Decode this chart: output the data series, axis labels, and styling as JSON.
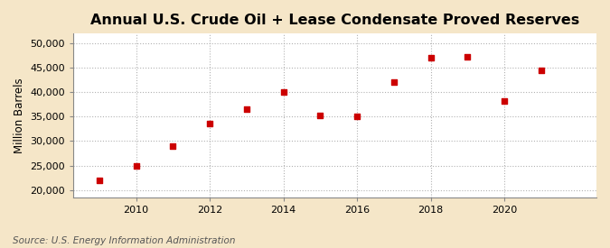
{
  "title": "Annual U.S. Crude Oil + Lease Condensate Proved Reserves",
  "ylabel": "Million Barrels",
  "source": "Source: U.S. Energy Information Administration",
  "background_color": "#f5e6c8",
  "plot_bg_color": "#ffffff",
  "marker_color": "#cc0000",
  "marker": "s",
  "marker_size": 5,
  "years": [
    2009,
    2010,
    2011,
    2012,
    2013,
    2014,
    2015,
    2016,
    2017,
    2018,
    2019,
    2020,
    2021
  ],
  "values": [
    22000,
    25000,
    29000,
    33500,
    36500,
    40000,
    35200,
    35100,
    42000,
    47000,
    47200,
    38200,
    44500
  ],
  "ylim": [
    18500,
    52000
  ],
  "yticks": [
    20000,
    25000,
    30000,
    35000,
    40000,
    45000,
    50000
  ],
  "xlim": [
    2008.3,
    2022.5
  ],
  "xticks": [
    2010,
    2012,
    2014,
    2016,
    2018,
    2020
  ],
  "title_fontsize": 11.5,
  "label_fontsize": 8.5,
  "tick_fontsize": 8,
  "source_fontsize": 7.5
}
